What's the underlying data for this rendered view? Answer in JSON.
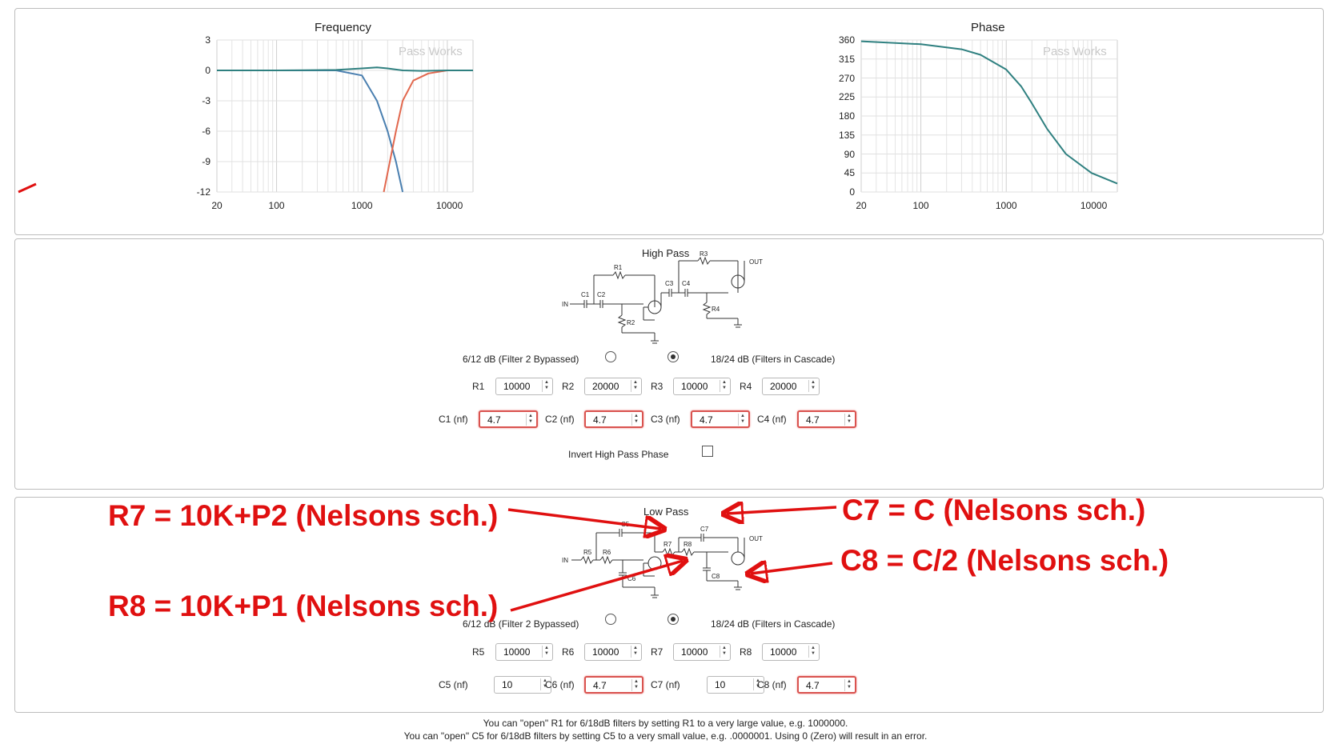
{
  "colors": {
    "accent_blue": "#4a7fb0",
    "accent_orange": "#e2684e",
    "accent_teal": "#2f8080",
    "annotation_red": "#e01010",
    "invalid_border": "#d9534f"
  },
  "charts": {
    "frequency": {
      "title": "Frequency",
      "watermark": "Pass Works",
      "yticks": [
        "3",
        "0",
        "-3",
        "-6",
        "-9",
        "-12"
      ],
      "xticks": [
        "20",
        "100",
        "1000",
        "10000"
      ]
    },
    "phase": {
      "title": "Phase",
      "watermark": "Pass Works",
      "yticks": [
        "360",
        "315",
        "270",
        "225",
        "180",
        "135",
        "90",
        "45",
        "0"
      ],
      "xticks": [
        "20",
        "100",
        "1000",
        "10000"
      ]
    }
  },
  "chart_data": [
    {
      "type": "line",
      "title": "Frequency",
      "xscale": "log",
      "xlim": [
        20,
        20000
      ],
      "ylim": [
        -12,
        3
      ],
      "grid": true,
      "series": [
        {
          "color": "#4a7fb0",
          "x": [
            20,
            100,
            500,
            1000,
            1500,
            2000,
            2500,
            3000
          ],
          "y": [
            0,
            0,
            0,
            -0.5,
            -3,
            -6,
            -9,
            -12
          ]
        },
        {
          "color": "#e2684e",
          "x": [
            1800,
            2500,
            3000,
            4000,
            6000,
            10000,
            20000
          ],
          "y": [
            -12,
            -6,
            -3,
            -1,
            -0.3,
            0,
            0
          ]
        },
        {
          "color": "#2f8080",
          "x": [
            20,
            100,
            500,
            1000,
            1500,
            2000,
            3000,
            5000,
            10000,
            20000
          ],
          "y": [
            0,
            0,
            0.05,
            0.2,
            0.3,
            0.2,
            0,
            -0.05,
            0,
            0
          ]
        }
      ]
    },
    {
      "type": "line",
      "title": "Phase",
      "xscale": "log",
      "xlim": [
        20,
        20000
      ],
      "ylim": [
        0,
        360
      ],
      "grid": true,
      "series": [
        {
          "color": "#2f8080",
          "x": [
            20,
            100,
            300,
            500,
            1000,
            1500,
            2000,
            3000,
            5000,
            10000,
            20000
          ],
          "y": [
            357,
            350,
            338,
            325,
            290,
            250,
            210,
            150,
            90,
            45,
            20
          ]
        }
      ]
    }
  ],
  "high_pass": {
    "title": "High Pass",
    "radio_left": "6/12 dB (Filter 2 Bypassed)",
    "radio_right": "18/24 dB (Filters in Cascade)",
    "fields_r": [
      {
        "label": "R1",
        "value": "10000"
      },
      {
        "label": "R2",
        "value": "20000"
      },
      {
        "label": "R3",
        "value": "10000"
      },
      {
        "label": "R4",
        "value": "20000"
      }
    ],
    "fields_c": [
      {
        "label": "C1 (nf)",
        "value": "4.7"
      },
      {
        "label": "C2 (nf)",
        "value": "4.7"
      },
      {
        "label": "C3 (nf)",
        "value": "4.7"
      },
      {
        "label": "C4 (nf)",
        "value": "4.7"
      }
    ],
    "invert_label": "Invert High Pass Phase",
    "schematic": {
      "r1": "R1",
      "r2": "R2",
      "r3": "R3",
      "r4": "R4",
      "c1": "C1",
      "c2": "C2",
      "c3": "C3",
      "c4": "C4",
      "in": "IN",
      "out": "OUT"
    }
  },
  "low_pass": {
    "title": "Low Pass",
    "radio_left": "6/12 dB (Filter 2 Bypassed)",
    "radio_right": "18/24 dB (Filters in Cascade)",
    "fields_r": [
      {
        "label": "R5",
        "value": "10000"
      },
      {
        "label": "R6",
        "value": "10000"
      },
      {
        "label": "R7",
        "value": "10000"
      },
      {
        "label": "R8",
        "value": "10000"
      }
    ],
    "fields_c": [
      {
        "label": "C5 (nf)",
        "value": "10"
      },
      {
        "label": "C6 (nf)",
        "value": "4.7"
      },
      {
        "label": "C7 (nf)",
        "value": "10"
      },
      {
        "label": "C8 (nf)",
        "value": "4.7"
      }
    ],
    "schematic": {
      "r5": "R5",
      "r6": "R6",
      "r7": "R7",
      "r8": "R8",
      "c5": "C5",
      "c6": "C6",
      "c7": "C7",
      "c8": "C8",
      "in": "IN",
      "out": "OUT"
    }
  },
  "annotations": [
    "R7 = 10K+P2 (Nelsons sch.)",
    "C7 = C (Nelsons sch.)",
    "C8 = C/2 (Nelsons sch.)",
    "R8 = 10K+P1 (Nelsons sch.)"
  ],
  "notes": [
    "You can \"open\" R1 for 6/18dB filters by setting R1 to a very large value, e.g. 1000000.",
    "You can \"open\" C5 for 6/18dB filters by setting C5 to a very small value, e.g. .0000001. Using 0 (Zero) will result in an error."
  ]
}
